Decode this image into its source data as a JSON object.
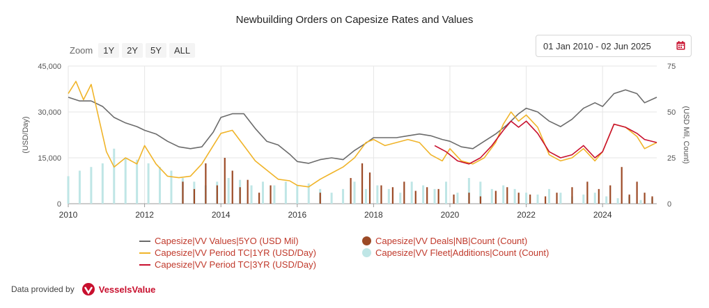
{
  "title": "Newbuilding Orders on Capesize Rates and Values",
  "zoom": {
    "label": "Zoom",
    "buttons": [
      "1Y",
      "2Y",
      "5Y",
      "ALL"
    ]
  },
  "date_range": "01 Jan 2010 - 02 Jun 2025",
  "footer": {
    "provided_by": "Data provided by",
    "brand": "VesselsValue"
  },
  "colors": {
    "values": "#6b6b6b",
    "tc1yr": "#f0b429",
    "tc3yr": "#c8102e",
    "deals": "#9c4a26",
    "fleet": "#bfe6e6"
  },
  "chart_data": {
    "type": "line",
    "title": "Newbuilding Orders on Capesize Rates and Values",
    "ylabel": "(USD/Day)",
    "y2label": "(USD Mil, Count)",
    "ylim": [
      0,
      45000
    ],
    "y2lim": [
      0,
      75
    ],
    "xlim": [
      2010.0,
      2025.42
    ],
    "x_ticks": [
      "2010",
      "2012",
      "2014",
      "2016",
      "2018",
      "2020",
      "2022",
      "2024"
    ],
    "y_ticks": [
      "0",
      "15,000",
      "30,000",
      "45,000"
    ],
    "y2_ticks": [
      "0",
      "25",
      "50",
      "75"
    ],
    "legend": [
      {
        "label": "Capesize|VV Values|5YO (USD Mil)",
        "color": "#6b6b6b",
        "kind": "line"
      },
      {
        "label": "Capesize|VV Period TC|1YR (USD/Day)",
        "color": "#f0b429",
        "kind": "line"
      },
      {
        "label": "Capesize|VV Period TC|3YR (USD/Day)",
        "color": "#c8102e",
        "kind": "line"
      },
      {
        "label": "Capesize|VV Deals|NB|Count (Count)",
        "color": "#9c4a26",
        "kind": "dot"
      },
      {
        "label": "Capesize|VV Fleet|Additions|Count (Count)",
        "color": "#bfe6e6",
        "kind": "dot"
      }
    ],
    "series": [
      {
        "name": "Capesize|VV Values|5YO (USD Mil)",
        "axis": "right",
        "x": [
          2010.0,
          2010.3,
          2010.6,
          2010.9,
          2011.2,
          2011.5,
          2011.8,
          2012.0,
          2012.3,
          2012.6,
          2012.9,
          2013.2,
          2013.5,
          2013.8,
          2014.0,
          2014.3,
          2014.6,
          2014.9,
          2015.2,
          2015.5,
          2015.8,
          2016.0,
          2016.3,
          2016.6,
          2016.9,
          2017.2,
          2017.5,
          2017.8,
          2018.0,
          2018.3,
          2018.6,
          2018.9,
          2019.2,
          2019.5,
          2019.8,
          2020.0,
          2020.3,
          2020.6,
          2020.9,
          2021.2,
          2021.5,
          2021.8,
          2022.0,
          2022.3,
          2022.6,
          2022.9,
          2023.2,
          2023.5,
          2023.8,
          2024.0,
          2024.3,
          2024.6,
          2024.9,
          2025.1,
          2025.42
        ],
        "y": [
          58,
          56,
          56,
          53,
          47,
          44,
          42,
          40,
          38,
          34,
          31,
          30,
          31,
          39,
          47,
          49,
          49,
          41,
          34,
          32,
          27,
          23,
          22,
          24,
          25,
          24,
          29,
          33,
          36,
          36,
          36,
          37,
          38,
          37,
          35,
          34,
          31,
          30,
          34,
          38,
          43,
          49,
          52,
          50,
          45,
          42,
          46,
          52,
          55,
          53,
          60,
          62,
          60,
          55,
          58
        ]
      },
      {
        "name": "Capesize|VV Period TC|1YR (USD/Day)",
        "axis": "left",
        "x": [
          2010.0,
          2010.2,
          2010.4,
          2010.6,
          2010.8,
          2011.0,
          2011.2,
          2011.5,
          2011.8,
          2012.0,
          2012.3,
          2012.6,
          2012.9,
          2013.2,
          2013.5,
          2013.8,
          2014.0,
          2014.3,
          2014.6,
          2014.9,
          2015.2,
          2015.5,
          2015.8,
          2016.0,
          2016.3,
          2016.6,
          2016.9,
          2017.2,
          2017.5,
          2017.8,
          2018.0,
          2018.3,
          2018.6,
          2018.9,
          2019.2,
          2019.5,
          2019.8,
          2020.0,
          2020.3,
          2020.6,
          2020.9,
          2021.2,
          2021.4,
          2021.6,
          2021.8,
          2022.0,
          2022.3,
          2022.6,
          2022.9,
          2023.2,
          2023.5,
          2023.8,
          2024.0,
          2024.3,
          2024.6,
          2024.9,
          2025.1,
          2025.42
        ],
        "y": [
          36000,
          40000,
          34000,
          39000,
          28000,
          17000,
          12000,
          15000,
          13000,
          19000,
          13000,
          9000,
          8500,
          9000,
          13000,
          19000,
          23000,
          24000,
          19000,
          14000,
          11000,
          8000,
          7500,
          6000,
          5500,
          8000,
          10000,
          12000,
          15000,
          20000,
          21000,
          19000,
          20000,
          21000,
          20000,
          16000,
          14000,
          18000,
          14000,
          13000,
          15000,
          20000,
          26000,
          30000,
          27000,
          29000,
          25000,
          16000,
          14000,
          15000,
          18000,
          14000,
          17000,
          26000,
          25000,
          22000,
          18000,
          20000
        ]
      },
      {
        "name": "Capesize|VV Period TC|3YR (USD/Day)",
        "axis": "left",
        "x": [
          2019.6,
          2019.9,
          2020.2,
          2020.5,
          2020.8,
          2021.1,
          2021.4,
          2021.6,
          2021.8,
          2022.0,
          2022.3,
          2022.6,
          2022.9,
          2023.2,
          2023.5,
          2023.8,
          2024.0,
          2024.3,
          2024.6,
          2024.9,
          2025.1,
          2025.42
        ],
        "y": [
          19000,
          17000,
          14000,
          13000,
          15000,
          19000,
          24000,
          27000,
          25000,
          27000,
          23000,
          17000,
          15000,
          16000,
          19000,
          15000,
          17000,
          26000,
          25000,
          23000,
          21000,
          20000
        ]
      }
    ],
    "deals_nb_count": {
      "x": [
        2013.0,
        2013.3,
        2013.6,
        2013.9,
        2014.1,
        2014.3,
        2014.5,
        2014.7,
        2015.0,
        2015.3,
        2016.6,
        2017.4,
        2017.7,
        2017.9,
        2018.2,
        2018.5,
        2018.8,
        2019.1,
        2019.4,
        2019.7,
        2020.1,
        2020.5,
        2020.8,
        2021.2,
        2021.5,
        2021.8,
        2022.1,
        2022.5,
        2022.8,
        2023.2,
        2023.6,
        2023.9,
        2024.2,
        2024.5,
        2024.7,
        2024.9,
        2025.1,
        2025.3
      ],
      "y": [
        12,
        8,
        22,
        10,
        25,
        18,
        9,
        13,
        6,
        10,
        6,
        14,
        22,
        17,
        10,
        9,
        12,
        7,
        9,
        8,
        5,
        6,
        4,
        7,
        9,
        6,
        5,
        4,
        6,
        9,
        12,
        8,
        10,
        20,
        5,
        12,
        6,
        4
      ]
    },
    "fleet_additions_count": {
      "x": [
        2010.0,
        2010.3,
        2010.6,
        2010.9,
        2011.2,
        2011.5,
        2011.8,
        2012.1,
        2012.4,
        2012.7,
        2013.0,
        2013.3,
        2013.6,
        2013.9,
        2014.2,
        2014.5,
        2014.8,
        2015.1,
        2015.4,
        2015.7,
        2016.0,
        2016.3,
        2016.6,
        2016.9,
        2017.2,
        2017.5,
        2017.8,
        2018.1,
        2018.4,
        2018.7,
        2019.0,
        2019.3,
        2019.6,
        2019.9,
        2020.2,
        2020.5,
        2020.8,
        2021.1,
        2021.4,
        2021.7,
        2022.0,
        2022.3,
        2022.6,
        2022.9,
        2023.2,
        2023.5,
        2023.8,
        2024.1,
        2024.4,
        2024.7,
        2025.0,
        2025.3
      ],
      "y": [
        15,
        18,
        20,
        22,
        30,
        25,
        24,
        22,
        20,
        18,
        14,
        12,
        10,
        12,
        14,
        13,
        10,
        12,
        10,
        12,
        10,
        11,
        8,
        6,
        8,
        12,
        8,
        10,
        8,
        6,
        12,
        10,
        8,
        12,
        6,
        14,
        12,
        8,
        10,
        8,
        6,
        5,
        8,
        6,
        4,
        5,
        6,
        4,
        3,
        4,
        2,
        3
      ]
    }
  }
}
